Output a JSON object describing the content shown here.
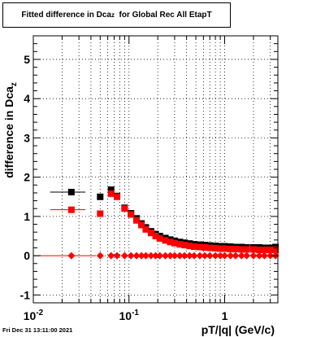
{
  "title": {
    "prefix": "Fitted difference in Dca",
    "sub": "z",
    "suffix": "  for Global Rec All EtapT"
  },
  "footer": "Fri Dec 31 13:11:00 2021",
  "axes": {
    "xlabel": "pT/|q| (GeV/c)",
    "ylabel_main": "difference in Dca",
    "ylabel_sub": "z"
  },
  "chart_data": {
    "type": "scatter",
    "title": "Fitted difference in Dca_z  for Global Rec All EtapT",
    "xlabel": "pT/|q| (GeV/c)",
    "ylabel": "difference in Dca_z",
    "xscale": "log",
    "xlim": [
      0.01,
      3.6
    ],
    "ylim": [
      -1.2,
      5.6
    ],
    "grid": true,
    "x_ticks": [
      {
        "value": 0.01,
        "label": "10^-2"
      },
      {
        "value": 0.1,
        "label": "10^-1"
      },
      {
        "value": 1,
        "label": "1"
      }
    ],
    "y_ticks": [
      -1,
      0,
      1,
      2,
      3,
      4,
      5
    ],
    "series": [
      {
        "color": "#000000",
        "marker": "square",
        "points": [
          {
            "x": 0.025,
            "y": 1.62,
            "xerr": [
              0.015,
              0.035
            ]
          },
          {
            "x": 0.05,
            "y": 1.5
          },
          {
            "x": 0.065,
            "y": 1.68
          },
          {
            "x": 0.075,
            "y": 1.52
          },
          {
            "x": 0.09,
            "y": 1.22
          },
          {
            "x": 0.105,
            "y": 1.08
          },
          {
            "x": 0.12,
            "y": 0.95
          },
          {
            "x": 0.135,
            "y": 0.82
          },
          {
            "x": 0.15,
            "y": 0.72
          },
          {
            "x": 0.17,
            "y": 0.62
          },
          {
            "x": 0.19,
            "y": 0.55
          },
          {
            "x": 0.21,
            "y": 0.5
          },
          {
            "x": 0.24,
            "y": 0.45
          },
          {
            "x": 0.27,
            "y": 0.41
          },
          {
            "x": 0.3,
            "y": 0.38
          },
          {
            "x": 0.34,
            "y": 0.35
          },
          {
            "x": 0.38,
            "y": 0.33
          },
          {
            "x": 0.43,
            "y": 0.31
          },
          {
            "x": 0.48,
            "y": 0.29
          },
          {
            "x": 0.55,
            "y": 0.28
          },
          {
            "x": 0.62,
            "y": 0.27
          },
          {
            "x": 0.7,
            "y": 0.26
          },
          {
            "x": 0.8,
            "y": 0.25
          },
          {
            "x": 0.9,
            "y": 0.24
          },
          {
            "x": 1.0,
            "y": 0.24
          },
          {
            "x": 1.15,
            "y": 0.23
          },
          {
            "x": 1.3,
            "y": 0.22
          },
          {
            "x": 1.5,
            "y": 0.22
          },
          {
            "x": 1.7,
            "y": 0.21
          },
          {
            "x": 2.0,
            "y": 0.21
          },
          {
            "x": 2.3,
            "y": 0.21
          },
          {
            "x": 2.6,
            "y": 0.2
          },
          {
            "x": 3.0,
            "y": 0.2
          },
          {
            "x": 3.4,
            "y": 0.22
          }
        ]
      },
      {
        "color": "#ff0000",
        "marker": "square",
        "points": [
          {
            "x": 0.025,
            "y": 1.17,
            "xerr": [
              0.015,
              0.035
            ]
          },
          {
            "x": 0.05,
            "y": 1.07
          },
          {
            "x": 0.065,
            "y": 1.58
          },
          {
            "x": 0.075,
            "y": 1.5
          },
          {
            "x": 0.09,
            "y": 1.2
          },
          {
            "x": 0.105,
            "y": 1.05
          },
          {
            "x": 0.12,
            "y": 0.9
          },
          {
            "x": 0.135,
            "y": 0.78
          },
          {
            "x": 0.15,
            "y": 0.67
          },
          {
            "x": 0.17,
            "y": 0.58
          },
          {
            "x": 0.19,
            "y": 0.5
          },
          {
            "x": 0.21,
            "y": 0.44
          },
          {
            "x": 0.24,
            "y": 0.39
          },
          {
            "x": 0.27,
            "y": 0.35
          },
          {
            "x": 0.3,
            "y": 0.32
          },
          {
            "x": 0.34,
            "y": 0.29
          },
          {
            "x": 0.38,
            "y": 0.27
          },
          {
            "x": 0.43,
            "y": 0.25
          },
          {
            "x": 0.48,
            "y": 0.23
          },
          {
            "x": 0.55,
            "y": 0.22
          },
          {
            "x": 0.62,
            "y": 0.21
          },
          {
            "x": 0.7,
            "y": 0.2
          },
          {
            "x": 0.8,
            "y": 0.19
          },
          {
            "x": 0.9,
            "y": 0.18
          },
          {
            "x": 1.0,
            "y": 0.18
          },
          {
            "x": 1.15,
            "y": 0.17
          },
          {
            "x": 1.3,
            "y": 0.17
          },
          {
            "x": 1.5,
            "y": 0.16
          },
          {
            "x": 1.7,
            "y": 0.16
          },
          {
            "x": 2.0,
            "y": 0.16
          },
          {
            "x": 2.3,
            "y": 0.15
          },
          {
            "x": 2.6,
            "y": 0.15
          },
          {
            "x": 3.0,
            "y": 0.15
          },
          {
            "x": 3.4,
            "y": 0.15
          }
        ]
      },
      {
        "color": "#ff0000",
        "marker": "diamond",
        "points": [
          {
            "x": 0.025,
            "y": 0.0,
            "xerr": [
              0.01,
              0.045
            ]
          },
          {
            "x": 0.05,
            "y": 0.0
          },
          {
            "x": 0.065,
            "y": 0.0
          },
          {
            "x": 0.075,
            "y": 0.0
          },
          {
            "x": 0.09,
            "y": 0.0
          },
          {
            "x": 0.105,
            "y": 0.0
          },
          {
            "x": 0.12,
            "y": 0.0
          },
          {
            "x": 0.135,
            "y": 0.0
          },
          {
            "x": 0.15,
            "y": 0.0
          },
          {
            "x": 0.17,
            "y": 0.0
          },
          {
            "x": 0.19,
            "y": 0.0
          },
          {
            "x": 0.21,
            "y": 0.0
          },
          {
            "x": 0.24,
            "y": 0.0
          },
          {
            "x": 0.27,
            "y": 0.0
          },
          {
            "x": 0.3,
            "y": 0.0
          },
          {
            "x": 0.34,
            "y": 0.0
          },
          {
            "x": 0.38,
            "y": 0.0
          },
          {
            "x": 0.43,
            "y": 0.0
          },
          {
            "x": 0.48,
            "y": 0.0
          },
          {
            "x": 0.55,
            "y": 0.0
          },
          {
            "x": 0.62,
            "y": 0.0
          },
          {
            "x": 0.7,
            "y": 0.0
          },
          {
            "x": 0.8,
            "y": 0.0
          },
          {
            "x": 0.9,
            "y": 0.0
          },
          {
            "x": 1.0,
            "y": 0.0
          },
          {
            "x": 1.15,
            "y": 0.0
          },
          {
            "x": 1.3,
            "y": 0.0
          },
          {
            "x": 1.5,
            "y": 0.0
          },
          {
            "x": 1.7,
            "y": 0.0
          },
          {
            "x": 2.0,
            "y": 0.0
          },
          {
            "x": 2.3,
            "y": 0.0
          },
          {
            "x": 2.6,
            "y": 0.0
          },
          {
            "x": 3.0,
            "y": 0.0
          },
          {
            "x": 3.4,
            "y": 0.0
          }
        ]
      }
    ]
  }
}
